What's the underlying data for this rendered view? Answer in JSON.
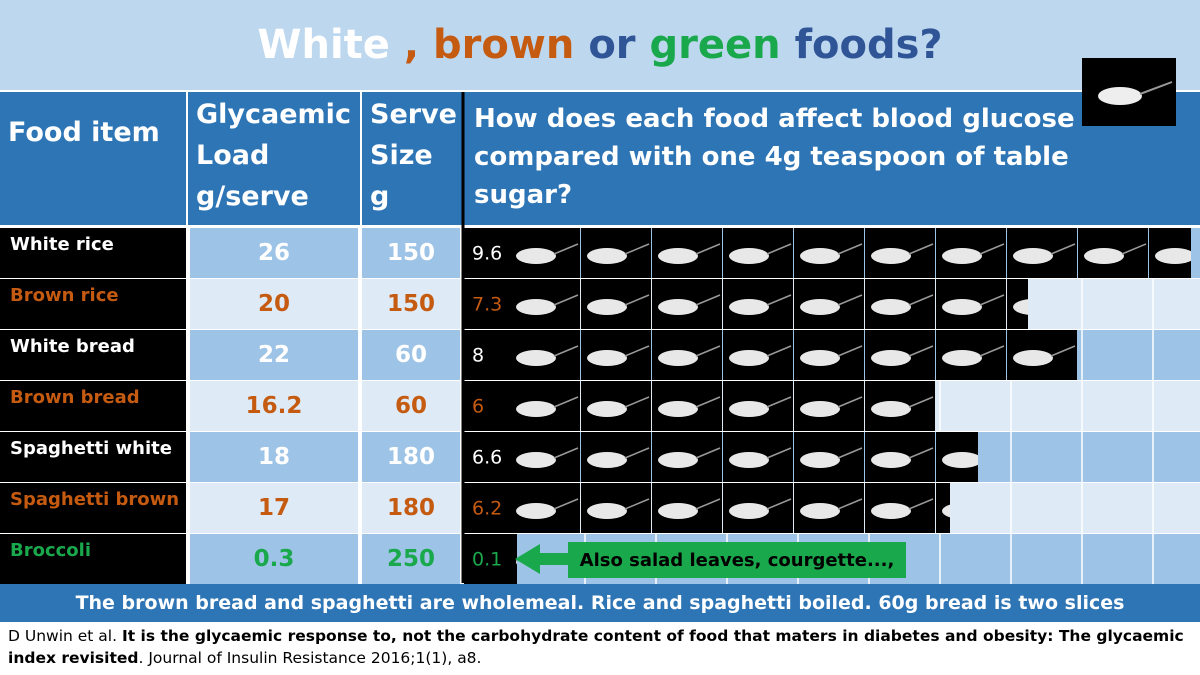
{
  "title_parts": [
    {
      "text": "White",
      "color": "#ffffff"
    },
    {
      "text": ", brown",
      "color": "#c55a11"
    },
    {
      "text": "or",
      "color": "#2f5597"
    },
    {
      "text": "green",
      "color": "#1aa84c"
    },
    {
      "text": "foods?",
      "color": "#2f5597"
    }
  ],
  "header": {
    "food": "Food item",
    "gl": "Glycaemic Load g/serve",
    "serve": "Serve Size g",
    "question": "How does each food affect blood glucose compared with one 4g teaspoon of table sugar?"
  },
  "table": {
    "rows": [
      {
        "food": "White rice",
        "gl": "26",
        "serve": "150",
        "teaspoons": 9.6,
        "color": "#ffffff"
      },
      {
        "food": "Brown rice",
        "gl": "20",
        "serve": "150",
        "teaspoons": 7.3,
        "color": "#c55a11"
      },
      {
        "food": "White bread",
        "gl": "22",
        "serve": "60",
        "teaspoons": 8,
        "color": "#ffffff"
      },
      {
        "food": "Brown bread",
        "gl": "16.2",
        "serve": "60",
        "teaspoons": 6,
        "color": "#c55a11"
      },
      {
        "food": "Spaghetti white",
        "gl": "18",
        "serve": "180",
        "teaspoons": 6.6,
        "color": "#ffffff"
      },
      {
        "food": "Spaghetti brown",
        "gl": "17",
        "serve": "180",
        "teaspoons": 6.2,
        "color": "#c55a11"
      },
      {
        "food": "Broccoli",
        "gl": "0.3",
        "serve": "250",
        "teaspoons": 0.1,
        "color": "#1aa84c"
      }
    ]
  },
  "broccoli_note": "Also salad leaves, courgette...,",
  "footer": "The brown bread and spaghetti are wholemeal. Rice and spaghetti boiled. 60g bread is two slices",
  "citation": {
    "authors": "D Unwin et al.",
    "title": "It is the glycaemic response to, not the carbohydrate content of food that maters in diabetes and obesity: The glycaemic index revisited",
    "rest": ". Journal of Insulin Resistance 2016;1(1), a8."
  }
}
